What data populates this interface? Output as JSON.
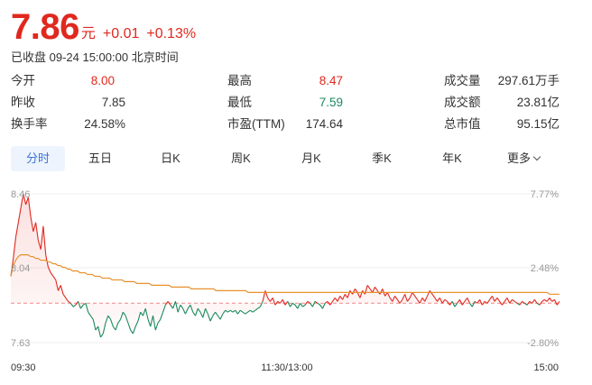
{
  "quote": {
    "price": "7.86",
    "unit": "元",
    "change": "+0.01",
    "change_pct": "+0.13%",
    "status": "已收盘 09-24 15:00:00 北京时间"
  },
  "stats": {
    "open_label": "今开",
    "open": "8.00",
    "prev_close_label": "昨收",
    "prev_close": "7.85",
    "turnover_label": "换手率",
    "turnover": "24.58%",
    "high_label": "最高",
    "high": "8.47",
    "low_label": "最低",
    "low": "7.59",
    "pe_label": "市盈(TTM)",
    "pe": "174.64",
    "volume_label": "成交量",
    "volume": "297.61万手",
    "amount_label": "成交额",
    "amount": "23.81亿",
    "mktcap_label": "总市值",
    "mktcap": "95.15亿"
  },
  "tabs": [
    {
      "label": "分时",
      "active": true
    },
    {
      "label": "五日"
    },
    {
      "label": "日K"
    },
    {
      "label": "周K"
    },
    {
      "label": "月K"
    },
    {
      "label": "季K"
    },
    {
      "label": "年K"
    },
    {
      "label": "更多"
    }
  ],
  "colors": {
    "up": "#e0281e",
    "down": "#1a8a5e",
    "avg_line": "#e8912c",
    "active_tab_bg": "#eef4fd",
    "active_tab_text": "#3b73d6"
  },
  "chart_data": {
    "type": "line",
    "y_left_labels": [
      "8.46",
      "8.04",
      "7.63"
    ],
    "y_right_labels": [
      "7.77%",
      "2.48%",
      "-2.80%"
    ],
    "ylim": [
      7.63,
      8.46
    ],
    "prev_close": 7.85,
    "x_labels": [
      "09:30",
      "11:30/13:00",
      "15:00"
    ],
    "series": [
      {
        "values": [
          8.0,
          8.1,
          8.22,
          8.3,
          8.38,
          8.46,
          8.4,
          8.44,
          8.33,
          8.25,
          8.3,
          8.2,
          8.15,
          8.28,
          8.12,
          8.05,
          8.02,
          8.0,
          7.98,
          7.92,
          7.95,
          7.9,
          7.88,
          7.86,
          7.85,
          7.83,
          7.84,
          7.86,
          7.82,
          7.84,
          7.85,
          7.8,
          7.78,
          7.76,
          7.7,
          7.72,
          7.66,
          7.68,
          7.74,
          7.78,
          7.76,
          7.72,
          7.7,
          7.74,
          7.76,
          7.8,
          7.78,
          7.74,
          7.7,
          7.68,
          7.72,
          7.75,
          7.8,
          7.78,
          7.82,
          7.76,
          7.72,
          7.78,
          7.7,
          7.74,
          7.76,
          7.8,
          7.84,
          7.86,
          7.84,
          7.82,
          7.86,
          7.8,
          7.84,
          7.82,
          7.79,
          7.82,
          7.84,
          7.8,
          7.78,
          7.82,
          7.8,
          7.77,
          7.82,
          7.79,
          7.75,
          7.78,
          7.8,
          7.78,
          7.76,
          7.79,
          7.81,
          7.8,
          7.81,
          7.8,
          7.81,
          7.79,
          7.81,
          7.8,
          7.79,
          7.8,
          7.81,
          7.8,
          7.81,
          7.82,
          7.83,
          7.86,
          7.92,
          7.88,
          7.86,
          7.88,
          7.84,
          7.86,
          7.85,
          7.87,
          7.84,
          7.86,
          7.83,
          7.85,
          7.84,
          7.82,
          7.85,
          7.83,
          7.84,
          7.86,
          7.85,
          7.83,
          7.86,
          7.85,
          7.84,
          7.82,
          7.85,
          7.86,
          7.84,
          7.86,
          7.88,
          7.86,
          7.89,
          7.87,
          7.9,
          7.88,
          7.92,
          7.9,
          7.93,
          7.91,
          7.88,
          7.92,
          7.9,
          7.95,
          7.93,
          7.91,
          7.94,
          7.92,
          7.9,
          7.93,
          7.89,
          7.91,
          7.88,
          7.86,
          7.89,
          7.87,
          7.85,
          7.87,
          7.9,
          7.86,
          7.88,
          7.91,
          7.89,
          7.87,
          7.85,
          7.88,
          7.86,
          7.89,
          7.92,
          7.9,
          7.88,
          7.86,
          7.88,
          7.85,
          7.87,
          7.86,
          7.84,
          7.86,
          7.83,
          7.85,
          7.87,
          7.84,
          7.86,
          7.88,
          7.85,
          7.83,
          7.86,
          7.85,
          7.87,
          7.84,
          7.86,
          7.85,
          7.87,
          7.89,
          7.86,
          7.88,
          7.86,
          7.84,
          7.86,
          7.88,
          7.85,
          7.87,
          7.86,
          7.85,
          7.84,
          7.86,
          7.85,
          7.84,
          7.86,
          7.85,
          7.87,
          7.85,
          7.84,
          7.86,
          7.87,
          7.86,
          7.88,
          7.86,
          7.87,
          7.84,
          7.86
        ]
      },
      {
        "values": [
          8.0,
          8.06,
          8.09,
          8.11,
          8.12,
          8.12,
          8.12,
          8.12,
          8.11,
          8.11,
          8.1,
          8.1,
          8.09,
          8.09,
          8.09,
          8.08,
          8.08,
          8.07,
          8.07,
          8.06,
          8.06,
          8.05,
          8.05,
          8.04,
          8.04,
          8.03,
          8.03,
          8.03,
          8.02,
          8.02,
          8.02,
          8.01,
          8.01,
          8.01,
          8.0,
          8.0,
          8.0,
          7.99,
          7.99,
          7.99,
          7.99,
          7.98,
          7.98,
          7.98,
          7.98,
          7.98,
          7.97,
          7.97,
          7.97,
          7.97,
          7.97,
          7.96,
          7.96,
          7.96,
          7.96,
          7.96,
          7.96,
          7.95,
          7.95,
          7.95,
          7.95,
          7.95,
          7.95,
          7.95,
          7.95,
          7.94,
          7.94,
          7.94,
          7.94,
          7.94,
          7.94,
          7.94,
          7.94,
          7.93,
          7.93,
          7.93,
          7.93,
          7.93,
          7.93,
          7.93,
          7.93,
          7.93,
          7.93,
          7.92,
          7.92,
          7.92,
          7.92,
          7.92,
          7.92,
          7.92,
          7.92,
          7.92,
          7.92,
          7.92,
          7.92,
          7.92,
          7.91,
          7.91,
          7.91,
          7.91,
          7.91,
          7.91,
          7.91,
          7.91,
          7.91,
          7.91,
          7.91,
          7.91,
          7.91,
          7.91,
          7.91,
          7.91,
          7.91,
          7.91,
          7.91,
          7.91,
          7.91,
          7.91,
          7.91,
          7.91,
          7.91,
          7.91,
          7.91,
          7.91,
          7.91,
          7.91,
          7.91,
          7.91,
          7.91,
          7.91,
          7.91,
          7.91,
          7.91,
          7.91,
          7.91,
          7.91,
          7.91,
          7.91,
          7.91,
          7.91,
          7.91,
          7.91,
          7.91,
          7.91,
          7.91,
          7.91,
          7.91,
          7.91,
          7.91,
          7.91,
          7.91,
          7.91,
          7.91,
          7.91,
          7.91,
          7.91,
          7.91,
          7.91,
          7.91,
          7.91,
          7.91,
          7.91,
          7.91,
          7.91,
          7.91,
          7.91,
          7.91,
          7.91,
          7.91,
          7.91,
          7.91,
          7.91,
          7.91,
          7.91,
          7.91,
          7.91,
          7.91,
          7.91,
          7.91,
          7.91,
          7.91,
          7.91,
          7.91,
          7.91,
          7.91,
          7.91,
          7.91,
          7.91,
          7.91,
          7.91,
          7.91,
          7.91,
          7.91,
          7.91,
          7.91,
          7.91,
          7.91,
          7.91,
          7.91,
          7.91,
          7.91,
          7.91,
          7.91,
          7.91,
          7.91,
          7.91,
          7.91,
          7.91,
          7.91,
          7.91,
          7.91,
          7.91,
          7.91,
          7.91,
          7.91,
          7.91,
          7.91,
          7.91,
          7.9,
          7.9,
          7.9,
          7.9,
          7.9
        ]
      }
    ]
  }
}
